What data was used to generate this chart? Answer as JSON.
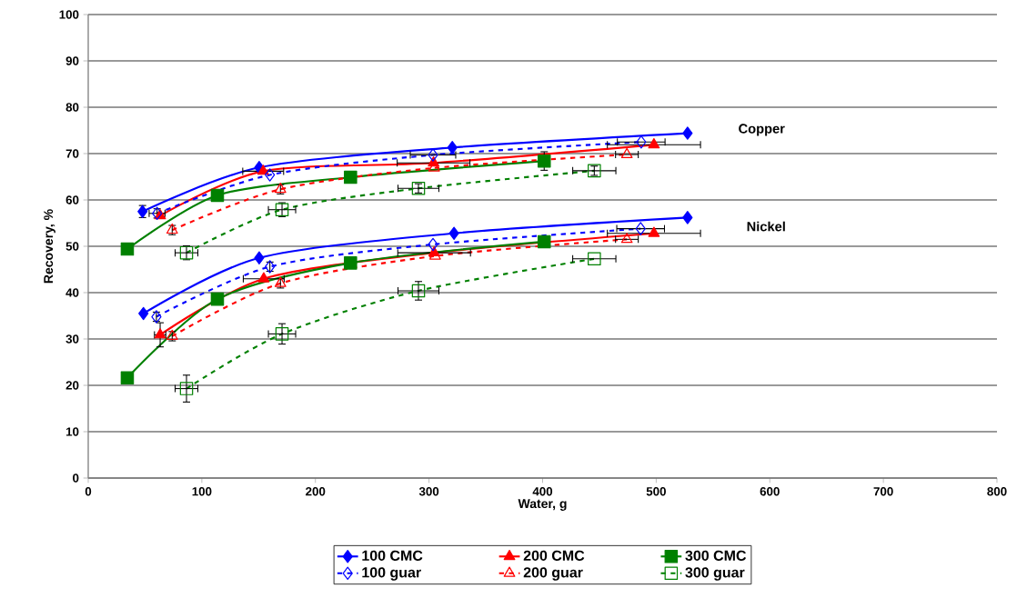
{
  "chart_data": {
    "type": "line",
    "xlabel": "Water, g",
    "ylabel": "Recovery, %",
    "xlim": [
      0,
      800
    ],
    "xticks": [
      0,
      100,
      200,
      300,
      400,
      500,
      600,
      700,
      800
    ],
    "ylim": [
      0,
      100
    ],
    "yticks": [
      0,
      10,
      20,
      30,
      40,
      50,
      60,
      70,
      80,
      90,
      100
    ],
    "grid": "y",
    "legend": "bottom",
    "series": [
      {
        "name": "100 CMC",
        "color": "#0000ff",
        "marker": "diamond",
        "line_style": "solid",
        "x": [
          47.8,
          150.5,
          320.5,
          527.6
        ],
        "values": [
          57.5,
          67.0,
          71.3,
          74.4
        ],
        "errors": [
          1.3,
          null,
          null,
          null
        ],
        "xerrors": [
          null,
          null,
          null,
          null
        ]
      },
      {
        "name": "200 CMC",
        "color": "#ff0000",
        "marker": "triangle",
        "line_style": "solid",
        "x": [
          63.3,
          154,
          304,
          498
        ],
        "values": [
          56.6,
          66.2,
          68,
          71.9
        ],
        "errors": [
          null,
          null,
          null,
          null
        ],
        "xerrors": [
          null,
          18,
          32,
          41
        ]
      },
      {
        "name": "300 CMC",
        "color": "#008000",
        "marker": "square",
        "line_style": "solid",
        "x": [
          34.4,
          113.7,
          230.9,
          401.4
        ],
        "values": [
          49.4,
          61.0,
          64.9,
          68.4
        ],
        "errors": [
          null,
          null,
          null,
          2
        ],
        "xerrors": [
          null,
          null,
          null,
          null
        ]
      },
      {
        "name": "100 guar",
        "color": "#0000ff",
        "marker": "diamond",
        "line_style": "dashed",
        "x": [
          60.6,
          159.9,
          303.5,
          486.8
        ],
        "values": [
          57.1,
          65.4,
          69.7,
          72.5
        ],
        "errors": [
          1,
          null,
          null,
          null
        ],
        "xerrors": [
          7,
          null,
          20,
          21
        ]
      },
      {
        "name": "200 guar",
        "color": "#ff0000",
        "marker": "triangle",
        "line_style": "dashed",
        "x": [
          73.9,
          169.2,
          304.5,
          474.2
        ],
        "values": [
          53.5,
          62.3,
          66.9,
          69.8
        ],
        "errors": [
          1,
          1,
          null,
          null
        ],
        "xerrors": [
          null,
          null,
          null,
          10
        ]
      },
      {
        "name": "300 guar",
        "color": "#008000",
        "marker": "square",
        "line_style": "dashed",
        "x": [
          86.5,
          170.6,
          290.7,
          445.5
        ],
        "values": [
          48.6,
          57.9,
          62.5,
          66.3
        ],
        "errors": [
          1.5,
          1.5,
          1,
          1
        ],
        "xerrors": [
          10,
          12,
          18,
          19
        ]
      },
      {
        "color": "#0000ff",
        "marker": "diamond",
        "line_style": "solid",
        "x": [
          48.6,
          150.5,
          322,
          527.6
        ],
        "values": [
          35.5,
          47.5,
          52.8,
          56.2
        ],
        "errors": [
          null,
          null,
          null,
          null
        ],
        "xerrors": [
          null,
          null,
          null,
          null
        ]
      },
      {
        "color": "#ff0000",
        "marker": "triangle",
        "line_style": "solid",
        "x": [
          63.3,
          154.5,
          304.5,
          498
        ],
        "values": [
          30.9,
          43,
          48.6,
          52.8
        ],
        "errors": [
          2.6,
          null,
          null,
          null
        ],
        "xerrors": [
          5,
          18,
          32,
          41
        ]
      },
      {
        "color": "#008000",
        "marker": "square",
        "line_style": "solid",
        "x": [
          34.4,
          113.7,
          230.9,
          401.4
        ],
        "values": [
          21.6,
          38.6,
          46.4,
          51
        ],
        "errors": [
          null,
          null,
          null,
          null
        ],
        "xerrors": [
          null,
          null,
          null,
          null
        ]
      },
      {
        "color": "#0000ff",
        "marker": "diamond",
        "line_style": "dashed",
        "x": [
          60,
          159.9,
          303.5,
          486.3
        ],
        "values": [
          34.8,
          45.6,
          50.4,
          53.8
        ],
        "errors": [
          1,
          1,
          null,
          null
        ],
        "xerrors": [
          null,
          null,
          null,
          21
        ]
      },
      {
        "color": "#ff0000",
        "marker": "triangle",
        "line_style": "dashed",
        "x": [
          73.9,
          169.2,
          305.4,
          474.2
        ],
        "values": [
          30.6,
          42,
          47.9,
          51.5
        ],
        "errors": [
          1,
          1,
          null,
          null
        ],
        "xerrors": [
          null,
          null,
          null,
          10
        ]
      },
      {
        "color": "#008000",
        "marker": "square",
        "line_style": "dashed",
        "x": [
          86.5,
          170.6,
          290.7,
          445.5
        ],
        "values": [
          19.3,
          31.1,
          40.4,
          47.3
        ],
        "errors": [
          2.9,
          2.2,
          2,
          null
        ],
        "xerrors": [
          10,
          12,
          18,
          19
        ]
      }
    ],
    "annotations": [
      "Copper",
      "Nickel"
    ]
  }
}
